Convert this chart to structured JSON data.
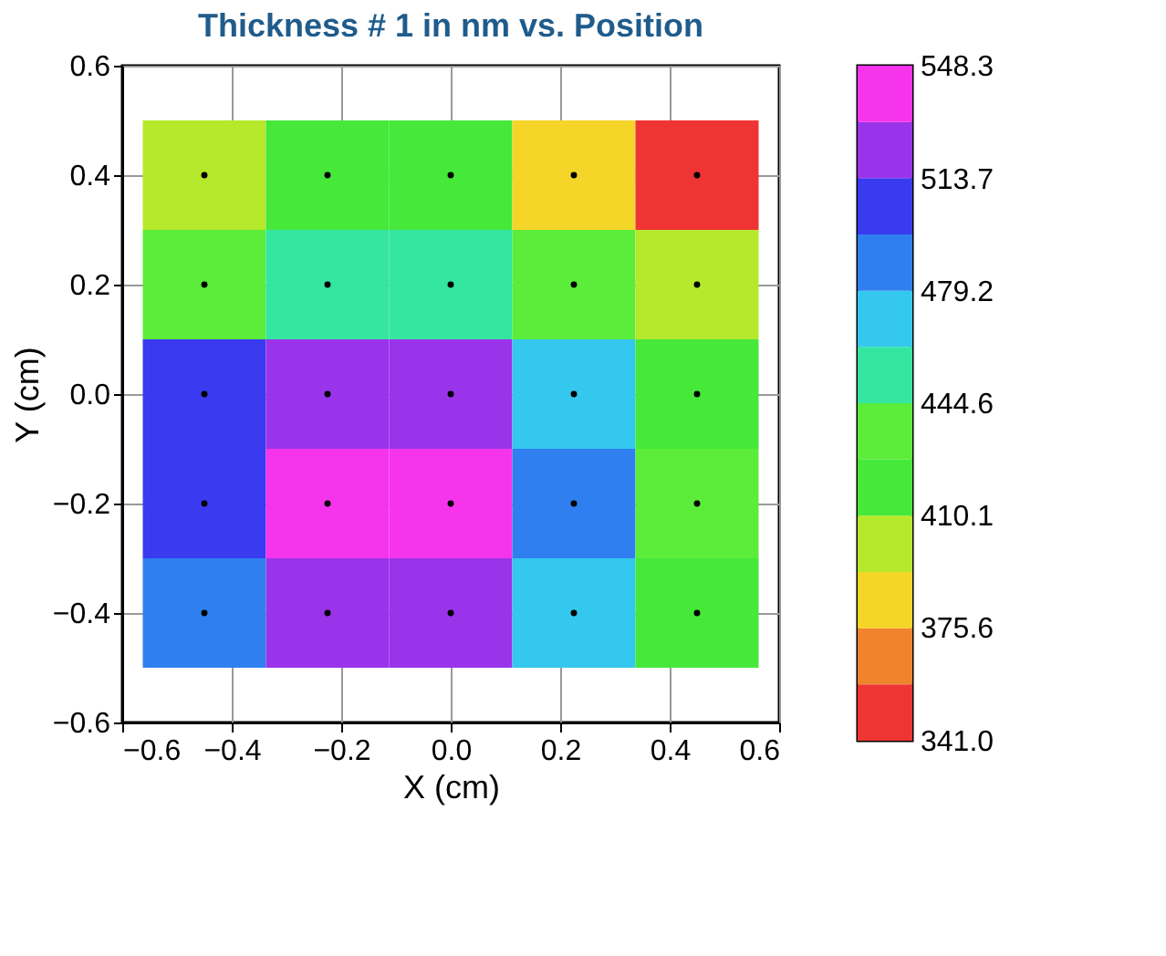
{
  "chart_data": {
    "type": "heatmap",
    "title": "Thickness # 1 in nm vs. Position",
    "xlabel": "X (cm)",
    "ylabel": "Y (cm)",
    "x": [
      -0.45,
      -0.225,
      0,
      0.225,
      0.45
    ],
    "y": [
      0.4,
      0.2,
      0,
      -0.2,
      -0.4
    ],
    "cells": [
      [
        395,
        415,
        412,
        376,
        341.0
      ],
      [
        430,
        455,
        458,
        428,
        400
      ],
      [
        500,
        522,
        520,
        470,
        420
      ],
      [
        510,
        548.3,
        540,
        485,
        440
      ],
      [
        485,
        518,
        515,
        465,
        425
      ]
    ],
    "xlim": [
      -0.6,
      0.6
    ],
    "ylim": [
      -0.6,
      0.6
    ],
    "xticks": [
      -0.6,
      -0.4,
      -0.2,
      {
        "value": 0,
        "label": "0.0"
      },
      0.2,
      0.4,
      0.6
    ],
    "yticks": [
      -0.6,
      -0.4,
      -0.2,
      {
        "value": 0,
        "label": "0.0"
      },
      0.2,
      0.4,
      0.6
    ],
    "grid": true,
    "clim": [
      341.0,
      548.3
    ],
    "cticks": [
      {
        "value": 341.0,
        "label": "341.0"
      },
      {
        "value": 375.6,
        "label": "375.6"
      },
      {
        "value": 410.1,
        "label": "410.1"
      },
      {
        "value": 444.6,
        "label": "444.6"
      },
      {
        "value": 479.2,
        "label": "479.2"
      },
      {
        "value": 513.7,
        "label": "513.7"
      },
      {
        "value": 548.3,
        "label": "548.3"
      }
    ],
    "colors": [
      "#ef3434",
      "#f0842c",
      "#f5d528",
      "#b6e82c",
      "#46e83a",
      "#5cec3a",
      "#34e6a0",
      "#34c8ee",
      "#2f7ff0",
      "#3a3af0",
      "#9a34ea",
      "#f634ec"
    ],
    "series": [
      {
        "type": "scatter",
        "color": "#000000",
        "marker": "circle",
        "x": [
          -0.45,
          -0.225,
          0,
          0.225,
          0.45,
          -0.45,
          -0.225,
          0,
          0.225,
          0.45,
          -0.45,
          -0.225,
          0,
          0.225,
          0.45,
          -0.45,
          -0.225,
          0,
          0.225,
          0.45,
          -0.45,
          -0.225,
          0,
          0.225,
          0.45
        ],
        "values": [
          0.4,
          0.4,
          0.4,
          0.4,
          0.4,
          0.2,
          0.2,
          0.2,
          0.2,
          0.2,
          0,
          0,
          0,
          0,
          0,
          -0.2,
          -0.2,
          -0.2,
          -0.2,
          -0.2,
          -0.4,
          -0.4,
          -0.4,
          -0.4,
          -0.4
        ]
      }
    ]
  }
}
